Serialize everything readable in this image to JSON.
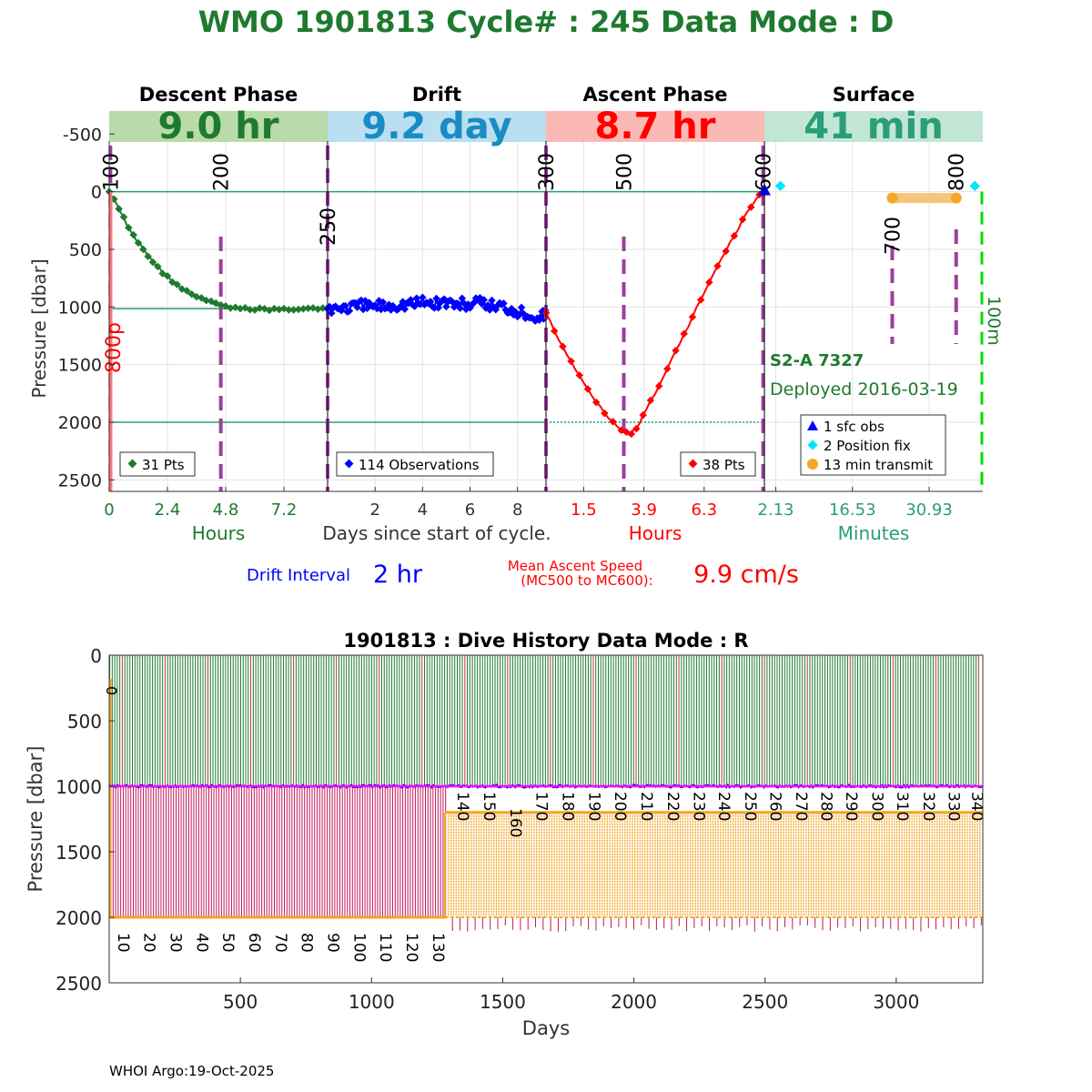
{
  "page": {
    "title": "WMO 1901813   Cycle# : 245   Data Mode : D",
    "footer": "WHOI Argo:19-Oct-2025"
  },
  "colors": {
    "title_green": "#1e7a2e",
    "descent": "#1e7a2e",
    "drift": "#0000ff",
    "ascent": "#ff0000",
    "surface": "#2a9d7a",
    "mc_marker": "#9b3fa0",
    "orange": "#f5a623",
    "magenta": "#ff00ff",
    "cyan": "#00e5ff",
    "bright_green": "#00dd00"
  },
  "chart_data": [
    {
      "type": "line",
      "id": "cycle_profile",
      "ylabel": "Pressure [dbar]",
      "ylim": [
        2600,
        -700
      ],
      "yticks": [
        -500,
        0,
        500,
        1000,
        1500,
        2000,
        2500
      ],
      "grid": true,
      "xcaption_center": "Days since start of cycle.",
      "phases": [
        {
          "name": "Descent Phase",
          "duration": "9.0 hr",
          "unit_label": "Hours",
          "band_color": "#b9dba9",
          "duration_color": "#1e7a2e",
          "tick_color": "#1e7a2e",
          "xlim": [
            0,
            9.0
          ],
          "xticks": [
            0,
            2.4,
            4.8,
            7.2
          ],
          "xticklabels": [
            "0",
            "2.4",
            "4.8",
            "7.2"
          ],
          "legend": "31 Pts",
          "series_color": "#1e7a2e",
          "x": [
            0,
            0.3,
            0.6,
            0.9,
            1.2,
            1.5,
            1.8,
            2.1,
            2.4,
            2.7,
            3.0,
            3.3,
            3.6,
            3.9,
            4.2,
            4.5,
            4.8,
            5.1,
            5.4,
            5.7,
            6.0,
            6.3,
            6.6,
            6.9,
            7.2,
            7.5,
            7.8,
            8.1,
            8.4,
            8.7,
            9.0
          ],
          "y": [
            0,
            110,
            230,
            350,
            440,
            530,
            610,
            680,
            740,
            790,
            840,
            880,
            910,
            940,
            960,
            980,
            990,
            1010,
            1015,
            1020,
            1015,
            1010,
            1030,
            1015,
            1020,
            1015,
            1015,
            1015,
            1015,
            1015,
            1015
          ],
          "mc_markers": [
            {
              "label": "100",
              "x": 0.05
            },
            {
              "label": "200",
              "x": 4.6
            }
          ]
        },
        {
          "name": "Drift",
          "duration": "9.2 day",
          "unit_label": "",
          "band_color": "#b9dff0",
          "duration_color": "#1a8cc4",
          "tick_color": "#333333",
          "xlim": [
            0,
            9.2
          ],
          "xticks": [
            2,
            4,
            6,
            8
          ],
          "xticklabels": [
            "2",
            "4",
            "6",
            "8"
          ],
          "legend": "114 Observations",
          "series_color": "#0000ff",
          "x": [
            0,
            0.5,
            1,
            1.5,
            2,
            2.5,
            3,
            3.5,
            4,
            4.5,
            5,
            5.5,
            6,
            6.5,
            7,
            7.5,
            8,
            8.5,
            9,
            9.2
          ],
          "y": [
            1010,
            1005,
            1000,
            995,
            990,
            985,
            975,
            970,
            960,
            965,
            955,
            980,
            970,
            975,
            985,
            1000,
            1030,
            1060,
            1080,
            1050
          ],
          "mc_markers": [
            {
              "label": "250",
              "x": 0.0
            }
          ]
        },
        {
          "name": "Ascent Phase",
          "duration": "8.7 hr",
          "unit_label": "Hours",
          "band_color": "#fab9b5",
          "duration_color": "#ff0000",
          "tick_color": "#ff0000",
          "xlim": [
            0,
            8.7
          ],
          "xticks": [
            1.5,
            3.9,
            6.3
          ],
          "xticklabels": [
            "1.5",
            "3.9",
            "6.3"
          ],
          "legend": "38 Pts",
          "series_color": "#ff0000",
          "x": [
            0,
            0.5,
            1.0,
            1.5,
            2.0,
            2.5,
            3.0,
            3.3,
            3.6,
            4.0,
            4.5,
            5.0,
            5.5,
            6.0,
            6.5,
            7.0,
            7.5,
            8.0,
            8.5,
            8.7
          ],
          "y": [
            1050,
            1280,
            1480,
            1660,
            1820,
            1960,
            2060,
            2110,
            2050,
            1890,
            1680,
            1460,
            1240,
            1010,
            790,
            580,
            380,
            180,
            30,
            0
          ],
          "mc_markers": [
            {
              "label": "300",
              "x": 0.0
            },
            {
              "label": "500",
              "x": 3.1
            },
            {
              "label": "600",
              "x": 8.65
            }
          ]
        },
        {
          "name": "Surface",
          "duration": "41 min",
          "unit_label": "Minutes",
          "band_color": "#c2e6d4",
          "duration_color": "#2a9d7a",
          "tick_color": "#2a9d7a",
          "xlim": [
            0,
            41
          ],
          "xticks": [
            2.13,
            16.53,
            30.93
          ],
          "xticklabels": [
            "2.13",
            "16.53",
            "30.93"
          ],
          "transmit": {
            "x": [
              24,
              36
            ],
            "y": 55
          },
          "mc_markers": [
            {
              "label": "700",
              "x": 24
            },
            {
              "label": "800",
              "x": 36
            }
          ],
          "position_fix_x": [
            3,
            39.5
          ],
          "end_marker_label": "100m",
          "float_label": "S2-A 7327",
          "deployed_label": "Deployed 2016-03-19",
          "legend": [
            "1 sfc obs",
            "2 Position fix",
            "13 min transmit"
          ]
        }
      ],
      "park_pressure": 1015,
      "profile_pressure": 2000,
      "descent_annotation": "800p",
      "drift_interval": {
        "label": "Drift Interval",
        "value": "2 hr"
      },
      "ascent_speed": {
        "label_line1": "Mean Ascent Speed",
        "label_line2": "(MC500 to MC600):",
        "value": "9.9 cm/s"
      }
    },
    {
      "type": "line",
      "id": "dive_history",
      "title": "1901813 : Dive History      Data Mode : R",
      "xlabel": "Days",
      "ylabel": "Pressure [dbar]",
      "xlim": [
        0,
        3330
      ],
      "ylim": [
        2500,
        0
      ],
      "xticks": [
        500,
        1000,
        1500,
        2000,
        2500,
        3000
      ],
      "yticks": [
        0,
        500,
        1000,
        1500,
        2000,
        2500
      ],
      "park_pressure": 1000,
      "first_cycle_label": "0",
      "cycle_labels_low": [
        "10",
        "20",
        "30",
        "40",
        "50",
        "60",
        "70",
        "80",
        "90",
        "100",
        "110",
        "120",
        "130"
      ],
      "cycle_labels_low_days": [
        55,
        155,
        255,
        355,
        455,
        555,
        655,
        755,
        855,
        955,
        1055,
        1155,
        1255
      ],
      "cycle_labels_high": [
        "140",
        "150",
        "160",
        "170",
        "180",
        "190",
        "200",
        "210",
        "220",
        "230",
        "240",
        "250",
        "260",
        "270",
        "280",
        "290",
        "300",
        "310",
        "320",
        "330",
        "340"
      ],
      "cycle_labels_high_days": [
        1350,
        1450,
        1550,
        1650,
        1750,
        1850,
        1950,
        2050,
        2150,
        2250,
        2345,
        2445,
        2540,
        2640,
        2735,
        2830,
        2930,
        3025,
        3125,
        3220,
        3310
      ],
      "regime_change_day": 1280,
      "early_profile_pressure": 2000,
      "late_park_pressure": 1200,
      "late_profile_pressure": 2000
    }
  ]
}
